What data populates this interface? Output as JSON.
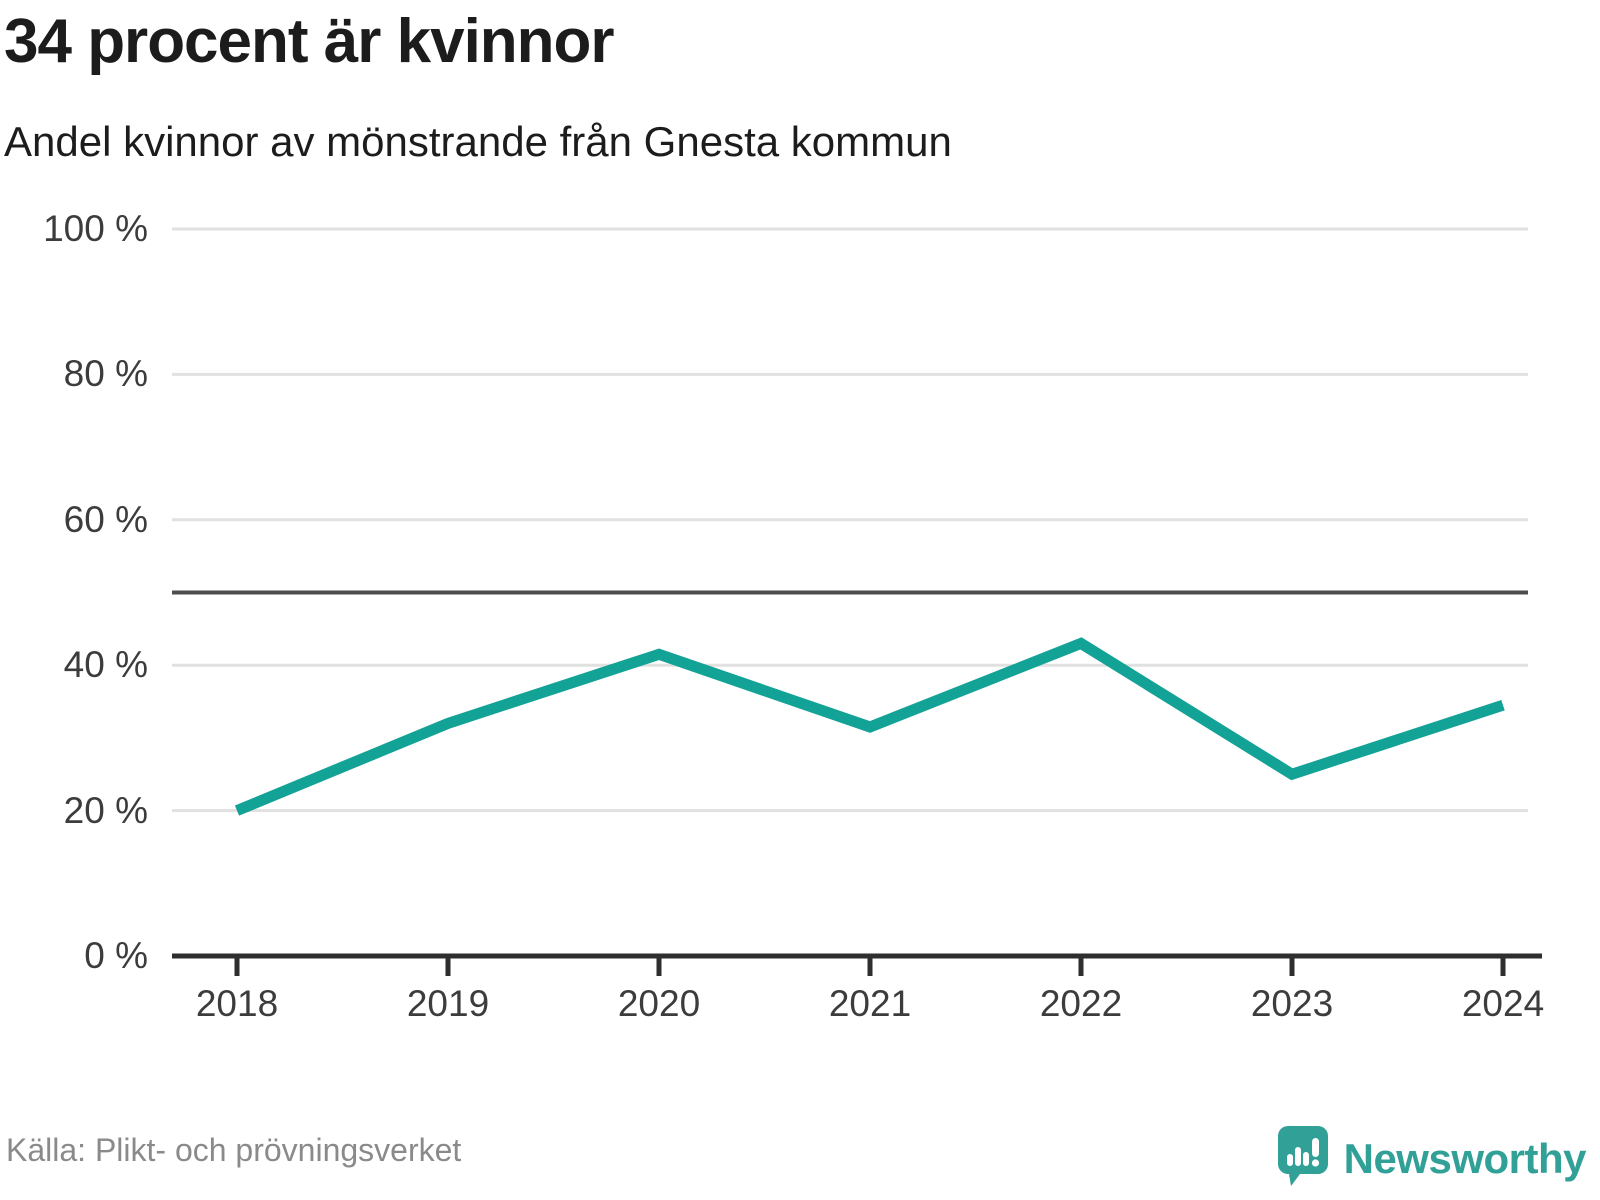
{
  "header": {
    "title": "34 procent är kvinnor",
    "subtitle": "Andel kvinnor av mönstrande från Gnesta kommun"
  },
  "footer": {
    "source": "Källa: Plikt- och prövningsverket",
    "brand_name": "Newsworthy",
    "brand_icon": "speech-bubble-bar-chart-icon"
  },
  "colors": {
    "line": "#12a296",
    "grid": "#e1e1e1",
    "reference_line": "#4d4d4d",
    "axis": "#2e2e2e",
    "title_text": "#1c1c1c",
    "tick_label_text": "#3c3c3c",
    "source_text": "#8a8a8a",
    "brand": "#31a096"
  },
  "chart_data": {
    "type": "line",
    "title": "34 procent är kvinnor",
    "subtitle": "Andel kvinnor av mönstrande från Gnesta kommun",
    "x": [
      2018,
      2019,
      2020,
      2021,
      2022,
      2023,
      2024
    ],
    "x_tick_labels": [
      "2018",
      "2019",
      "2020",
      "2021",
      "2022",
      "2023",
      "2024"
    ],
    "series": [
      {
        "name": "Andel kvinnor av mönstrande",
        "values": [
          20,
          32,
          41.5,
          31.5,
          43,
          25,
          34.5
        ]
      }
    ],
    "xlabel": "",
    "ylabel": "",
    "ylim": [
      0,
      100
    ],
    "yticks": [
      0,
      20,
      40,
      60,
      80,
      100
    ],
    "ytick_labels": [
      "0 %",
      "20 %",
      "40 %",
      "60 %",
      "80 %",
      "100 %"
    ],
    "reference_line_y": 50,
    "grid": "horizontal",
    "legend": "none"
  }
}
